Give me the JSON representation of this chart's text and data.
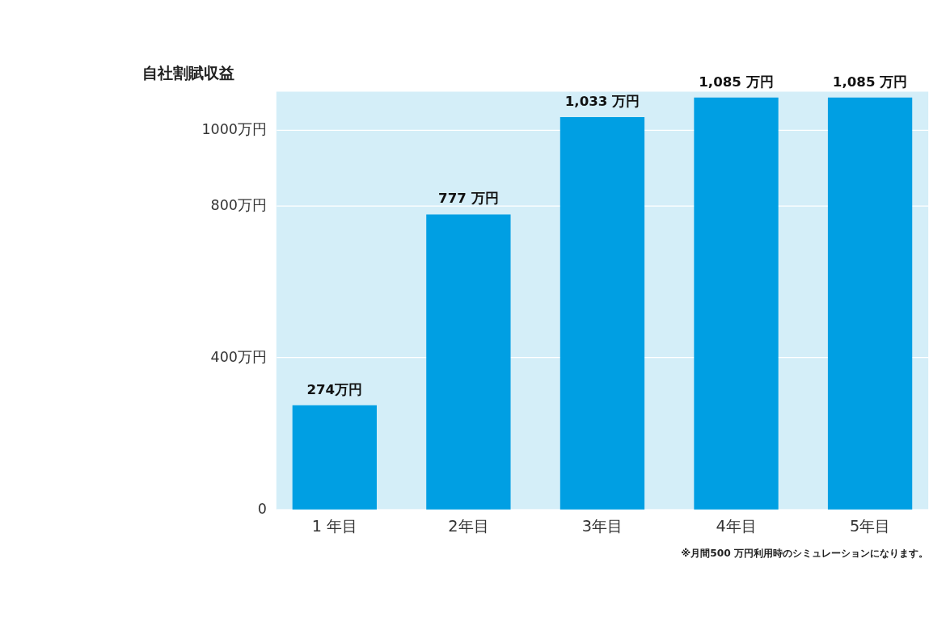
{
  "chart_data": {
    "type": "bar",
    "ylabel": "自社割賦収益",
    "categories": [
      "1 年目",
      "2年目",
      "3年目",
      "4年目",
      "5年目"
    ],
    "values": [
      274,
      777,
      1033,
      1085,
      1085
    ],
    "value_labels": [
      "274万円",
      "777 万円",
      "1,033 万円",
      "1,085 万円",
      "1,085 万円"
    ],
    "color": "#009fe3",
    "ylim": [
      0,
      1100
    ],
    "yticks": [
      0,
      {
        "value": 400,
        "label": "400万円"
      },
      {
        "value": 800,
        "label": "800万円"
      },
      {
        "value": 1000,
        "label": "1000万円"
      }
    ],
    "grid": "y",
    "annotations": [
      "※月間500 万円利用時のシミュレーションになります。"
    ]
  }
}
